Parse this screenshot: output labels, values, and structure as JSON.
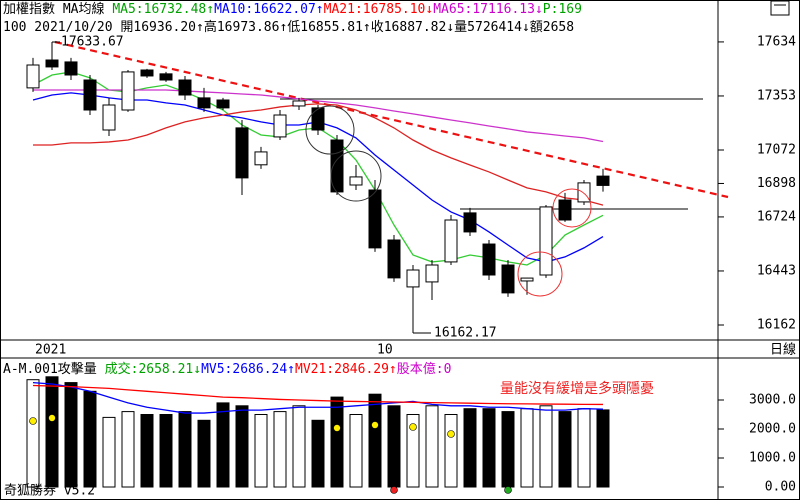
{
  "chart_data": [
    {
      "type": "candlestick",
      "header_lines": [
        [
          {
            "text": "加權指數 MA均線 ",
            "color": "#000000"
          },
          {
            "text": "MA5:16732.48↑",
            "color": "#00a000"
          },
          {
            "text": "MA10:16622.07↑",
            "color": "#0000ff"
          },
          {
            "text": "MA21:16785.10↓",
            "color": "#ff0000"
          },
          {
            "text": "MA65:17116.13↓",
            "color": "#cc00cc"
          },
          {
            "text": "P:169",
            "color": "#00a000"
          }
        ],
        [
          {
            "text": "100 2021/10/20 開16936.20↑高16973.86↑低16855.81↑收16887.82↓量5726414↓額2658",
            "color": "#000000"
          }
        ]
      ],
      "period": "日線",
      "categories": [
        "2021",
        null,
        null,
        null,
        null,
        null,
        null,
        null,
        null,
        null,
        null,
        null,
        null,
        null,
        null,
        null,
        null,
        null,
        "10",
        null,
        null,
        null,
        null,
        null,
        null,
        null,
        null,
        null,
        null,
        null,
        null
      ],
      "open": [
        17395,
        17540,
        17530,
        17436,
        17176,
        17280,
        17488,
        17468,
        17436,
        17343,
        17332,
        17187,
        16995,
        17140,
        17301,
        17291,
        17124,
        16890,
        16864,
        16604,
        16360,
        16386,
        16490,
        16745,
        16583,
        16474,
        16391,
        16422,
        16812,
        16802,
        16936.2
      ],
      "high": [
        17551,
        17633.67,
        17551,
        17462,
        17343,
        17488,
        17494,
        17478,
        17457,
        17395,
        17343,
        17228,
        17088,
        17280,
        17343,
        17306,
        17150,
        16994,
        16916,
        16630,
        16474,
        16500,
        16734,
        16771,
        16604,
        16500,
        16407,
        16786,
        16849,
        16916,
        16973.86
      ],
      "low": [
        17374,
        17488,
        17436,
        17254,
        17145,
        17270,
        17447,
        17426,
        17332,
        17270,
        17280,
        16838,
        16974,
        17124,
        17280,
        17150,
        16838,
        16864,
        16542,
        16386,
        16162.17,
        16292,
        16474,
        16625,
        16396,
        16308,
        16319,
        16407,
        16698,
        16786,
        16855.81
      ],
      "close": [
        17514,
        17504,
        17462,
        17280,
        17306,
        17478,
        17457,
        17436,
        17358,
        17291,
        17291,
        16927,
        17062,
        17254,
        17327,
        17176,
        16854,
        16932,
        16563,
        16407,
        16448,
        16474,
        16708,
        16646,
        16422,
        16329,
        16406,
        16776,
        16708,
        16901,
        16887.82
      ],
      "series": [
        {
          "color": "#33cc33",
          "values": [
            17410,
            17462,
            17478,
            17447,
            17384,
            17374,
            17395,
            17410,
            17374,
            17332,
            17280,
            17202,
            17150,
            17140,
            17176,
            17187,
            17124,
            17020,
            16864,
            16682,
            16526,
            16490,
            16500,
            16526,
            16511,
            16490,
            16474,
            16526,
            16630,
            16682,
            16732.48
          ]
        },
        {
          "color": "#0000ff",
          "values": [
            17332,
            17358,
            17369,
            17358,
            17343,
            17332,
            17332,
            17317,
            17306,
            17280,
            17254,
            17239,
            17218,
            17202,
            17202,
            17218,
            17187,
            17135,
            17046,
            16968,
            16890,
            16812,
            16750,
            16708,
            16646,
            16578,
            16511,
            16490,
            16516,
            16563,
            16622.07
          ]
        },
        {
          "color": "#dd2222",
          "values": [
            17098,
            17098,
            17109,
            17109,
            17114,
            17124,
            17150,
            17187,
            17218,
            17239,
            17254,
            17270,
            17280,
            17296,
            17306,
            17312,
            17306,
            17280,
            17239,
            17187,
            17124,
            17072,
            17031,
            16994,
            16958,
            16916,
            16875,
            16854,
            16823,
            16812,
            16785.1
          ]
        },
        {
          "color": "#cc33cc",
          "values": [
            17384,
            17384,
            17384,
            17384,
            17384,
            17384,
            17384,
            17384,
            17379,
            17374,
            17369,
            17363,
            17358,
            17348,
            17338,
            17327,
            17317,
            17306,
            17291,
            17275,
            17260,
            17244,
            17228,
            17213,
            17197,
            17182,
            17166,
            17156,
            17145,
            17135,
            17116.13
          ]
        }
      ],
      "high_label": "17633.67",
      "low_label": "16162.17",
      "ylim": [
        16084,
        17748
      ],
      "yticks": [
        17634,
        17353,
        17072,
        16898,
        16724,
        16443,
        16162
      ]
    },
    {
      "type": "volume",
      "header_lines": [
        [
          {
            "text": "A-M.001攻擊量 ",
            "color": "#000000"
          },
          {
            "text": "成交:2658.21↓",
            "color": "#00a000"
          },
          {
            "text": "MV5:2686.24↑",
            "color": "#0000ff"
          },
          {
            "text": "MV21:2846.29↑",
            "color": "#ff0000"
          },
          {
            "text": "股本億:0",
            "color": "#cc00cc"
          }
        ]
      ],
      "note": "量能沒有緩增是多頭隱憂",
      "values": [
        3700,
        3800,
        3600,
        3300,
        2400,
        2600,
        2500,
        2500,
        2600,
        2300,
        2900,
        2800,
        2500,
        2600,
        2800,
        2300,
        3100,
        2500,
        3200,
        2800,
        2500,
        2800,
        2500,
        2700,
        2700,
        2600,
        2700,
        2800,
        2600,
        2700,
        2658.21
      ],
      "series": [
        {
          "color": "#0000ff",
          "values": [
            3600,
            3550,
            3450,
            3300,
            3100,
            2900,
            2750,
            2650,
            2550,
            2550,
            2600,
            2650,
            2650,
            2700,
            2750,
            2750,
            2750,
            2800,
            2850,
            2900,
            2950,
            2850,
            2800,
            2800,
            2750,
            2750,
            2700,
            2650,
            2650,
            2700,
            2686.24
          ]
        },
        {
          "color": "#ff0000",
          "values": [
            3500,
            3480,
            3460,
            3430,
            3400,
            3350,
            3300,
            3250,
            3200,
            3150,
            3100,
            3080,
            3050,
            3020,
            3000,
            2980,
            2960,
            2950,
            2940,
            2930,
            2920,
            2910,
            2900,
            2890,
            2880,
            2870,
            2865,
            2860,
            2855,
            2850,
            2846.29
          ]
        }
      ],
      "ylim": [
        -379,
        4310
      ],
      "yticks": [
        {
          "value": 3000,
          "label": "3000.0"
        },
        {
          "value": 2000,
          "label": "2000.0"
        },
        {
          "value": 1000,
          "label": "1000.0"
        },
        {
          "value": 0,
          "label": "0.00"
        }
      ]
    }
  ],
  "footer": "奇狐勝券 v5.2"
}
